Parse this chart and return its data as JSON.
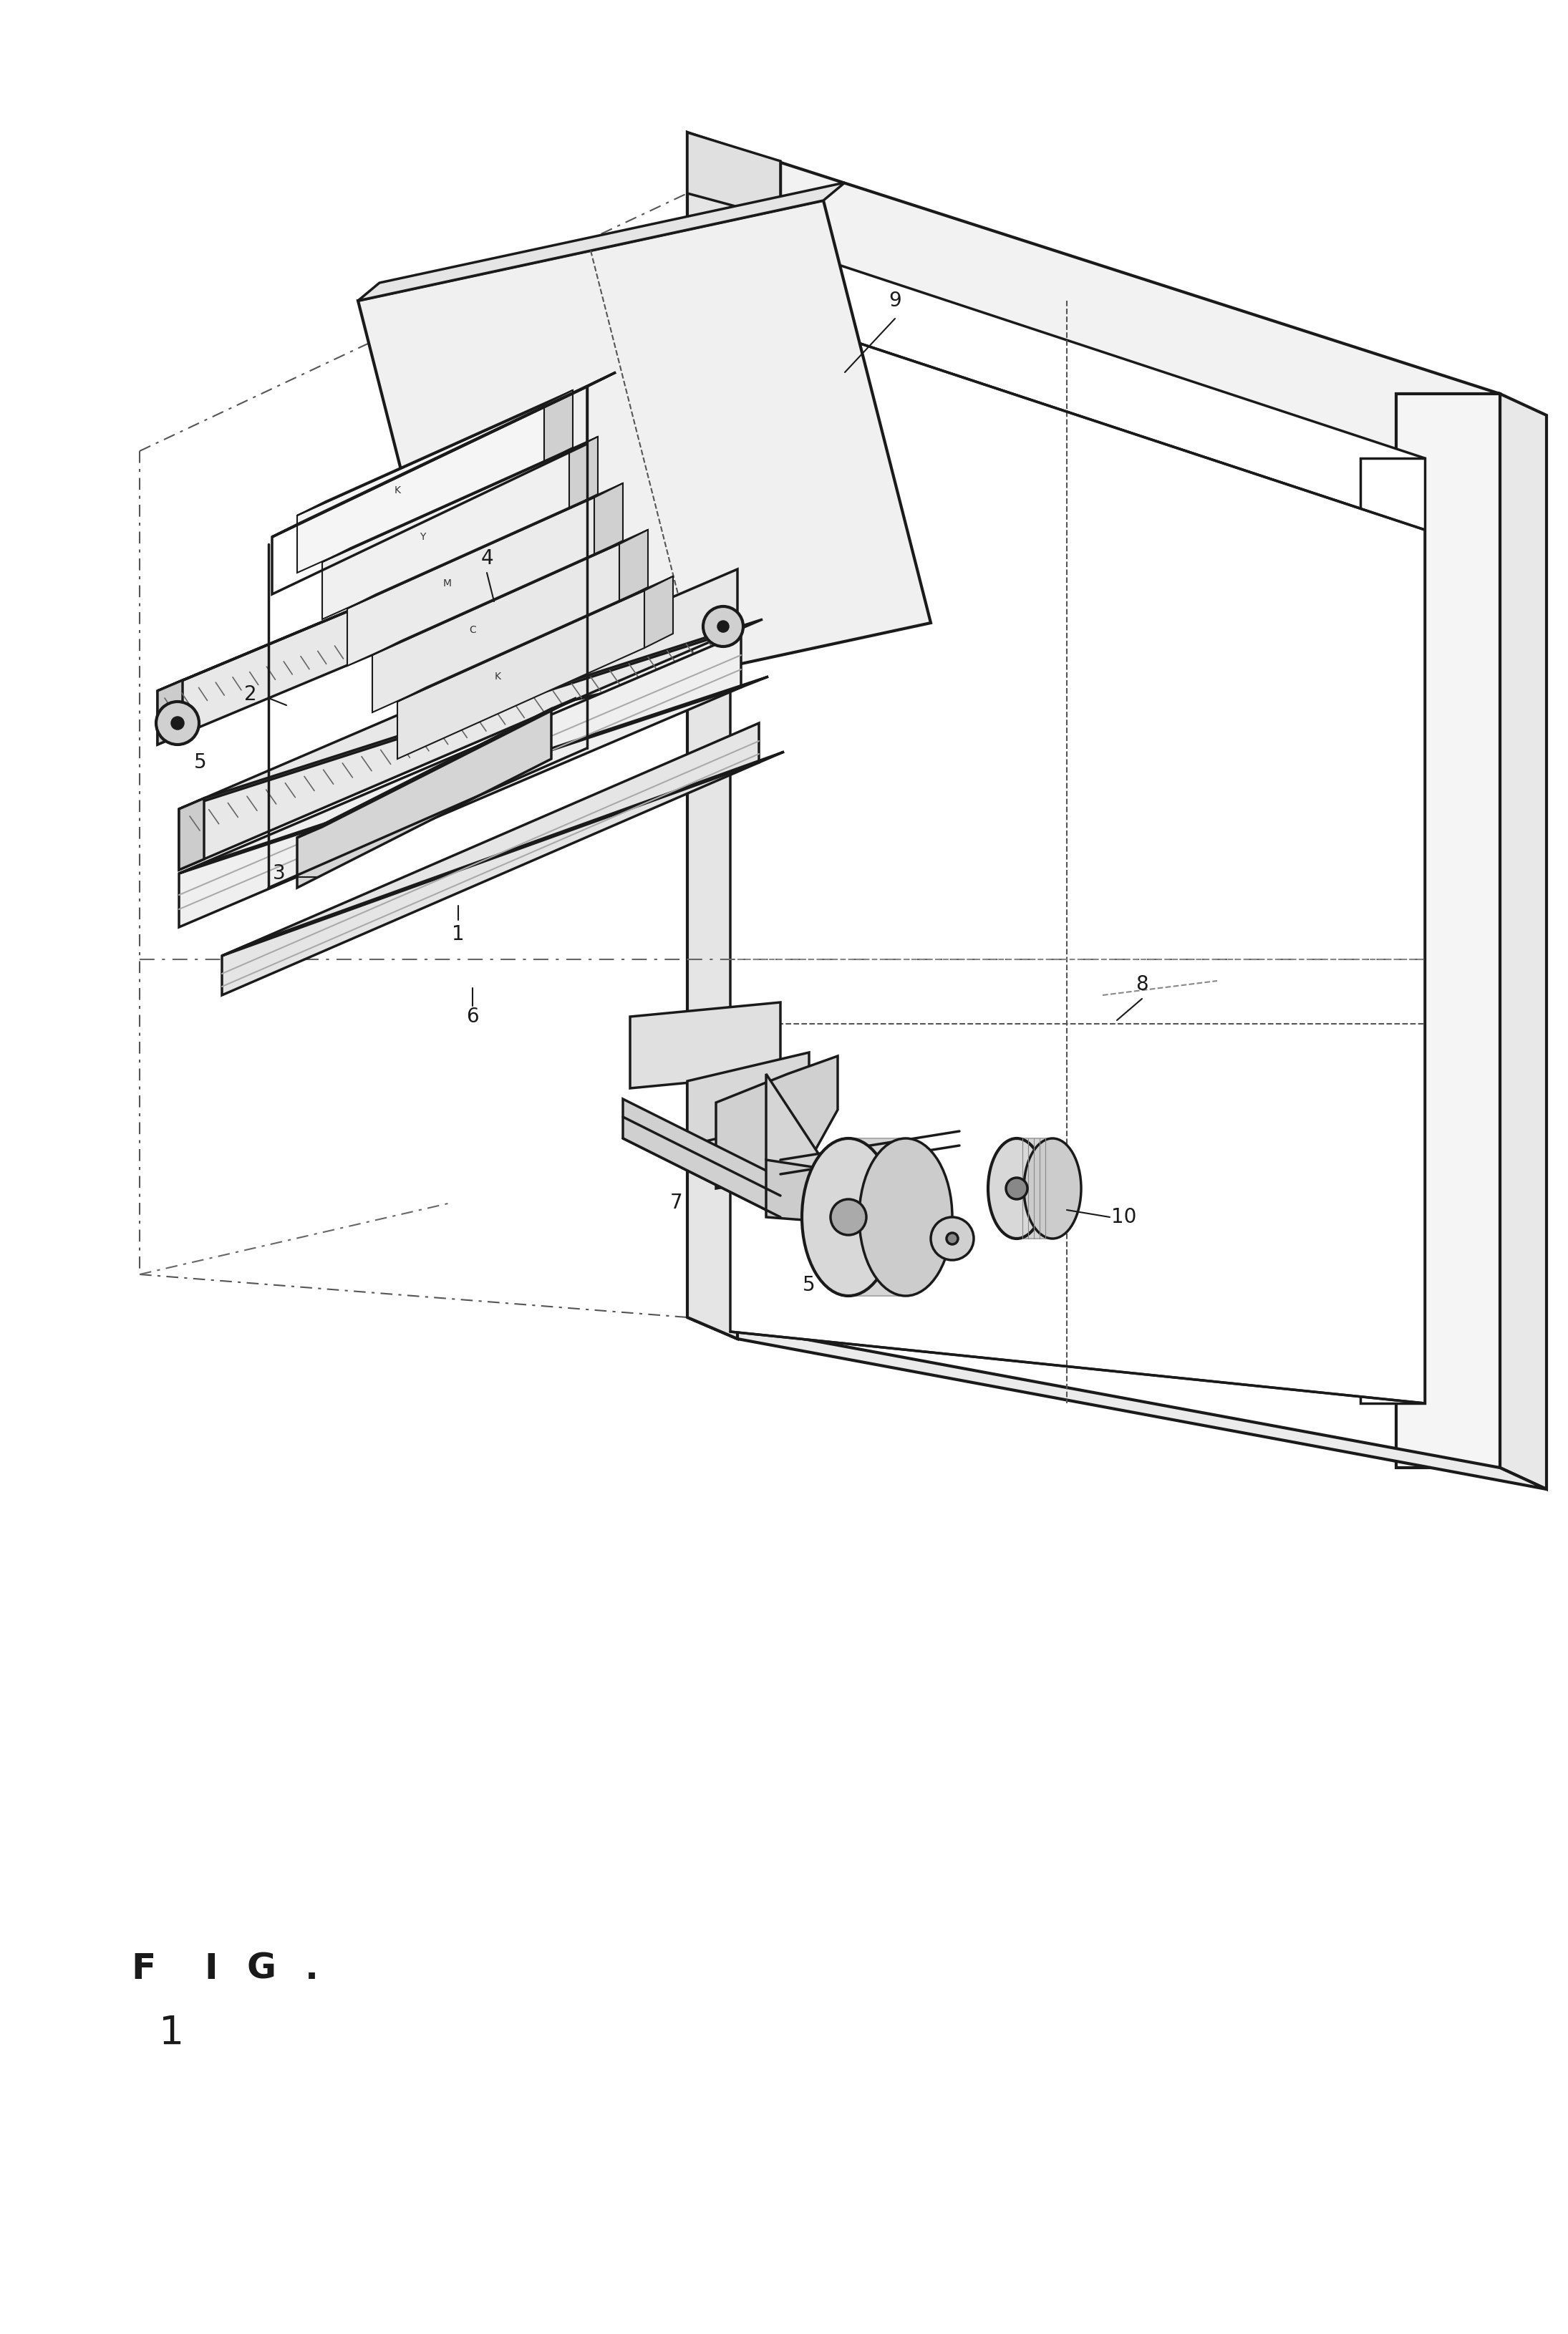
{
  "background_color": "#ffffff",
  "line_color": "#1a1a1a",
  "fig_label": "FIG. 1",
  "fig_num": "1",
  "lw_main": 2.5,
  "lw_thin": 1.5,
  "lw_thick": 3.0,
  "lw_vthick": 3.5,
  "ref_fontsize": 20,
  "fig_fontsize": 32,
  "ink_labels": [
    "K",
    "C",
    "M",
    "Y",
    "K"
  ],
  "ink_label_fontsize": 10
}
